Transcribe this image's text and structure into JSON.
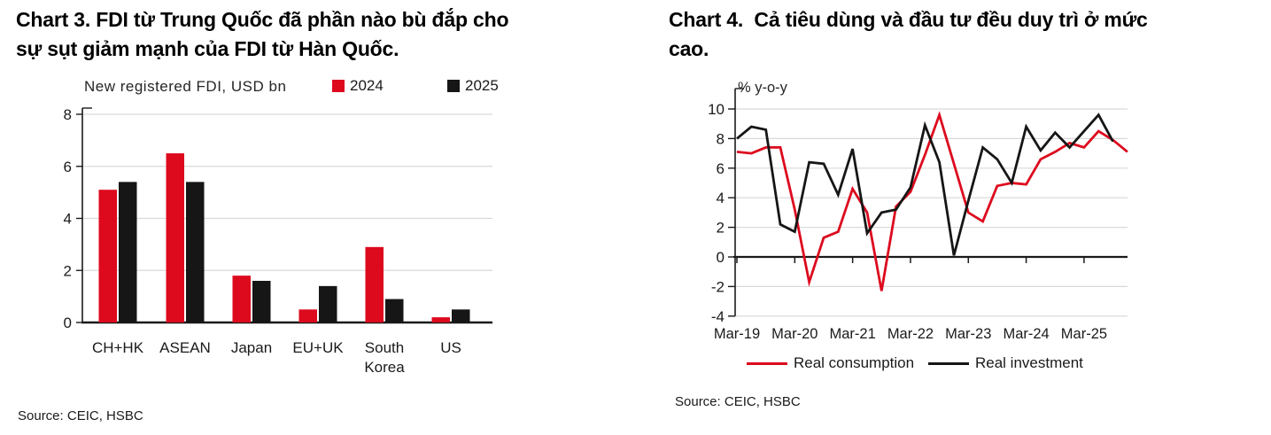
{
  "colors": {
    "red": "#dd0a1e",
    "black": "#161616",
    "grid": "#d9d9d9",
    "axis": "#1a1a1a"
  },
  "chart3": {
    "title_lines": [
      "Chart 3. FDI từ Trung Quốc đã phần nào bù đắp cho",
      "sự sụt giảm mạnh của FDI từ Hàn Quốc."
    ],
    "legend_title": "New registered FDI, USD bn",
    "source": "Source: CEIC, HSBC"
  },
  "chart4": {
    "title_lines": [
      "Chart 4.  Cả tiêu dùng và đầu tư đều duy trì ở mức",
      "cao."
    ],
    "ylabel": "% y-o-y",
    "source": "Source: CEIC, HSBC"
  },
  "chart_data": [
    {
      "type": "bar",
      "title": "Chart 3. FDI từ Trung Quốc đã phần nào bù đắp cho sự sụt giảm mạnh của FDI từ Hàn Quốc.",
      "axis_note": "New registered FDI, USD bn",
      "categories": [
        "CH+HK",
        "ASEAN",
        "Japan",
        "EU+UK",
        "South Korea",
        "US"
      ],
      "series": [
        {
          "name": "2024",
          "color": "#dd0a1e",
          "values": [
            5.1,
            6.5,
            1.8,
            0.5,
            2.9,
            0.2
          ]
        },
        {
          "name": "2025",
          "color": "#161616",
          "values": [
            5.4,
            5.4,
            1.6,
            1.4,
            0.9,
            0.5
          ]
        }
      ],
      "ylim": [
        0,
        8
      ],
      "yticks": [
        0,
        2,
        4,
        6,
        8
      ],
      "grid": true,
      "legend_position": "top",
      "source": "Source: CEIC, HSBC"
    },
    {
      "type": "line",
      "title": "Chart 4. Cả tiêu dùng và đầu tư đều duy trì ở mức cao.",
      "ylabel": "% y-o-y",
      "x": [
        "Mar-19",
        "Jun-19",
        "Sep-19",
        "Dec-19",
        "Mar-20",
        "Jun-20",
        "Sep-20",
        "Dec-20",
        "Mar-21",
        "Jun-21",
        "Sep-21",
        "Dec-21",
        "Mar-22",
        "Jun-22",
        "Sep-22",
        "Dec-22",
        "Mar-23",
        "Jun-23",
        "Sep-23",
        "Dec-23",
        "Mar-24",
        "Jun-24",
        "Sep-24",
        "Dec-24",
        "Mar-25",
        "Jun-25",
        "Sep-25",
        "Dec-25"
      ],
      "x_tick_labels": [
        "Mar-19",
        "Mar-20",
        "Mar-21",
        "Mar-22",
        "Mar-23",
        "Mar-24",
        "Mar-25"
      ],
      "series": [
        {
          "name": "Real consumption",
          "color": "#dd0a1e",
          "values": [
            7.1,
            7.0,
            7.4,
            7.4,
            3.2,
            -1.7,
            1.3,
            1.7,
            4.6,
            3.0,
            -2.3,
            3.4,
            4.4,
            6.9,
            9.6,
            6.3,
            3.0,
            2.4,
            4.8,
            5.0,
            4.9,
            6.6,
            7.1,
            7.7,
            7.4,
            8.5,
            7.9,
            7.1
          ]
        },
        {
          "name": "Real investment",
          "color": "#161616",
          "values": [
            8.0,
            8.8,
            8.6,
            2.2,
            1.7,
            6.4,
            6.3,
            4.2,
            7.3,
            1.6,
            3.0,
            3.2,
            4.7,
            8.9,
            6.4,
            0.1,
            3.8,
            7.4,
            6.6,
            5.0,
            8.8,
            7.2,
            8.4,
            7.4,
            8.5,
            9.6,
            7.8,
            null
          ]
        }
      ],
      "ylim": [
        -4,
        10
      ],
      "yticks": [
        -4,
        -2,
        0,
        2,
        4,
        6,
        8,
        10
      ],
      "grid": true,
      "legend_position": "bottom",
      "source": "Source: CEIC, HSBC"
    }
  ]
}
